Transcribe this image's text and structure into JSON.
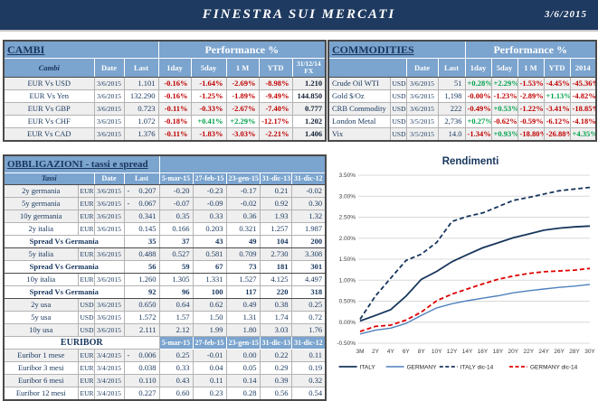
{
  "header": {
    "title": "FINESTRA SUI MERCATI",
    "date": "3/6/2015"
  },
  "colors": {
    "accent_navy": "#1F3A60",
    "table_header_blue": "#7BA4CE",
    "text_navy": "#17365D",
    "negative_red": "#C00000",
    "positive_green": "#00A14B"
  },
  "cambi": {
    "section_title": "CAMBI",
    "perf_title": "Performance  %",
    "col_name": "Cambi",
    "columns": [
      "Date",
      "Last",
      "1day",
      "5day",
      "1 M",
      "YTD",
      "31/12/14 FX"
    ],
    "rows": [
      {
        "name": "EUR Vs USD",
        "date": "3/6/2015",
        "last": "1.101",
        "perf": [
          "-0.16%",
          "-1.64%",
          "-2.69%",
          "-8.98%"
        ],
        "fx": "1.210"
      },
      {
        "name": "EUR Vs Yen",
        "date": "3/6/2015",
        "last": "132.290",
        "perf": [
          "-0.16%",
          "-1.25%",
          "-1.89%",
          "-9.49%"
        ],
        "fx": "144.850"
      },
      {
        "name": "EUR Vs GBP",
        "date": "3/6/2015",
        "last": "0.723",
        "perf": [
          "-0.11%",
          "-0.33%",
          "-2.67%",
          "-7.40%"
        ],
        "fx": "0.777"
      },
      {
        "name": "EUR Vs CHF",
        "date": "3/6/2015",
        "last": "1.072",
        "perf": [
          "-0.18%",
          "+0.41%",
          "+2.29%",
          "-12.17%"
        ],
        "fx": "1.202"
      },
      {
        "name": "EUR Vs CAD",
        "date": "3/6/2015",
        "last": "1.376",
        "perf": [
          "-0.11%",
          "-1.83%",
          "-3.03%",
          "-2.21%"
        ],
        "fx": "1.406"
      }
    ]
  },
  "commodities": {
    "section_title": "COMMODITIES",
    "perf_title": "Performance  %",
    "columns": [
      "Date",
      "Last",
      "1day",
      "5day",
      "1 M",
      "YTD",
      "2014"
    ],
    "rows": [
      {
        "name": "Crude Oil WTI",
        "cur": "USD",
        "date": "3/6/2015",
        "last": "51",
        "perf": [
          "+0.28%",
          "+2.29%",
          "-1.53%",
          "-4.45%",
          "-45.36%"
        ]
      },
      {
        "name": "Gold $/Oz",
        "cur": "USD",
        "date": "3/6/2015",
        "last": "1,198",
        "perf": [
          "-0.00%",
          "-1.23%",
          "-2.89%",
          "+1.13%",
          "-4.82%"
        ]
      },
      {
        "name": "CRB Commodity",
        "cur": "USD",
        "date": "3/6/2015",
        "last": "222",
        "perf": [
          "-0.49%",
          "+0.53%",
          "-1.22%",
          "-3.41%",
          "-18.85%"
        ]
      },
      {
        "name": "London Metal",
        "cur": "USD",
        "date": "3/5/2015",
        "last": "2,736",
        "perf": [
          "+0.27%",
          "-0.62%",
          "-0.59%",
          "-6.12%",
          "-4.18%"
        ]
      },
      {
        "name": "Vix",
        "cur": "USD",
        "date": "3/5/2015",
        "last": "14.0",
        "perf": [
          "-1.34%",
          "+0.93%",
          "-18.80%",
          "-26.88%",
          "+4.35%"
        ]
      }
    ]
  },
  "obbligazioni": {
    "section_title": "OBBLIGAZIONI - tassi e spread",
    "col_name": "Tassi",
    "columns": [
      "Date",
      "Last",
      "5-mar-15",
      "27-feb-15",
      "23-gen-15",
      "31-dic-13",
      "31-dic-12"
    ],
    "rows": [
      {
        "type": "data",
        "name": "2y germania",
        "cur": "EUR",
        "date": "3/6/2015",
        "sign": "-",
        "last": "0.207",
        "vals": [
          "-0.20",
          "-0.23",
          "-0.17",
          "0.21",
          "-0.02"
        ]
      },
      {
        "type": "data",
        "name": "5y germania",
        "cur": "EUR",
        "date": "3/6/2015",
        "sign": "-",
        "last": "0.067",
        "vals": [
          "-0.07",
          "-0.09",
          "-0.02",
          "0.92",
          "0.30"
        ]
      },
      {
        "type": "data",
        "name": "10y germania",
        "cur": "EUR",
        "date": "3/6/2015",
        "sign": "",
        "last": "0.341",
        "vals": [
          "0.35",
          "0.33",
          "0.36",
          "1.93",
          "1.32"
        ]
      },
      {
        "type": "data",
        "name": "2y italia",
        "cur": "EUR",
        "date": "3/6/2015",
        "sign": "",
        "last": "0.145",
        "vals": [
          "0.166",
          "0.203",
          "0.321",
          "1.257",
          "1.987"
        ]
      },
      {
        "type": "spread",
        "name": "Spread Vs Germania",
        "last": "35",
        "vals": [
          "37",
          "43",
          "49",
          "104",
          "200"
        ]
      },
      {
        "type": "data",
        "name": "5y italia",
        "cur": "EUR",
        "date": "3/6/2015",
        "sign": "",
        "last": "0.488",
        "vals": [
          "0.527",
          "0.581",
          "0.709",
          "2.730",
          "3.308"
        ]
      },
      {
        "type": "spread",
        "name": "Spread Vs Germania",
        "last": "56",
        "vals": [
          "59",
          "67",
          "73",
          "181",
          "301"
        ]
      },
      {
        "type": "data",
        "name": "10y italia",
        "cur": "EUR",
        "date": "3/6/2015",
        "sign": "",
        "last": "1.260",
        "vals": [
          "1.305",
          "1.331",
          "1.527",
          "4.125",
          "4.497"
        ]
      },
      {
        "type": "spread",
        "name": "Spread Vs Germania",
        "last": "92",
        "vals": [
          "96",
          "100",
          "117",
          "220",
          "318"
        ]
      },
      {
        "type": "data",
        "name": "2y usa",
        "cur": "USD",
        "date": "3/6/2015",
        "sign": "",
        "last": "0.650",
        "vals": [
          "0.64",
          "0.62",
          "0.49",
          "0.38",
          "0.25"
        ]
      },
      {
        "type": "data",
        "name": "5y usa",
        "cur": "USD",
        "date": "3/6/2015",
        "sign": "",
        "last": "1.572",
        "vals": [
          "1.57",
          "1.50",
          "1.31",
          "1.74",
          "0.72"
        ]
      },
      {
        "type": "data",
        "name": "10y usa",
        "cur": "USD",
        "date": "3/6/2015",
        "sign": "",
        "last": "2.111",
        "vals": [
          "2.12",
          "1.99",
          "1.80",
          "3.03",
          "1.76"
        ]
      }
    ]
  },
  "euribor": {
    "title": "EURIBOR",
    "columns": [
      "5-mar-15",
      "27-feb-15",
      "23-gen-15",
      "31-dic-13",
      "31-dic-12"
    ],
    "rows": [
      {
        "name": "Euribor 1 mese",
        "cur": "EUR",
        "date": "3/4/2015",
        "sign": "-",
        "last": "0.006",
        "vals": [
          "0.25",
          "-0.01",
          "0.00",
          "0.22",
          "0.11"
        ]
      },
      {
        "name": "Euribor 3 mesi",
        "cur": "EUR",
        "date": "3/4/2015",
        "sign": "",
        "last": "0.038",
        "vals": [
          "0.33",
          "0.04",
          "0.05",
          "0.29",
          "0.19"
        ]
      },
      {
        "name": "Euribor 6 mesi",
        "cur": "EUR",
        "date": "3/4/2015",
        "sign": "",
        "last": "0.110",
        "vals": [
          "0.43",
          "0.11",
          "0.14",
          "0.39",
          "0.32"
        ]
      },
      {
        "name": "Euribor 12 mesi",
        "cur": "EUR",
        "date": "3/4/2015",
        "sign": "",
        "last": "0.227",
        "vals": [
          "0.60",
          "0.23",
          "0.28",
          "0.56",
          "0.54"
        ]
      }
    ]
  },
  "chart_data": {
    "type": "line",
    "title": "Rendimenti",
    "xlabel": "",
    "ylabel": "",
    "ylim": [
      -0.5,
      3.5
    ],
    "ytick_step": 0.5,
    "grid": true,
    "legend_position": "bottom",
    "x": [
      "3M",
      "2Y",
      "4Y",
      "6Y",
      "8Y",
      "10Y",
      "12Y",
      "14Y",
      "16Y",
      "18Y",
      "20Y",
      "22Y",
      "24Y",
      "26Y",
      "28Y",
      "30Y"
    ],
    "series": [
      {
        "name": "ITALY",
        "color": "#17365D",
        "dashed": false,
        "values": [
          0.03,
          0.16,
          0.3,
          0.62,
          1.02,
          1.21,
          1.44,
          1.61,
          1.77,
          1.89,
          2.01,
          2.1,
          2.19,
          2.24,
          2.27,
          2.29
        ]
      },
      {
        "name": "GERMANY",
        "color": "#4F81BD",
        "dashed": false,
        "values": [
          -0.28,
          -0.19,
          -0.14,
          -0.03,
          0.16,
          0.34,
          0.44,
          0.51,
          0.57,
          0.63,
          0.7,
          0.75,
          0.79,
          0.83,
          0.86,
          0.9
        ]
      },
      {
        "name": "ITALY dic-14",
        "color": "#17365D",
        "dashed": true,
        "values": [
          0.07,
          0.62,
          1.05,
          1.47,
          1.62,
          1.9,
          2.4,
          2.52,
          2.6,
          2.75,
          2.9,
          2.97,
          3.05,
          3.13,
          3.17,
          3.21
        ]
      },
      {
        "name": "GERMANY dic-14",
        "color": "#E00000",
        "dashed": true,
        "values": [
          -0.22,
          -0.1,
          -0.07,
          0.05,
          0.24,
          0.51,
          0.67,
          0.79,
          0.91,
          1.02,
          1.1,
          1.16,
          1.2,
          1.22,
          1.24,
          1.28
        ]
      }
    ]
  }
}
